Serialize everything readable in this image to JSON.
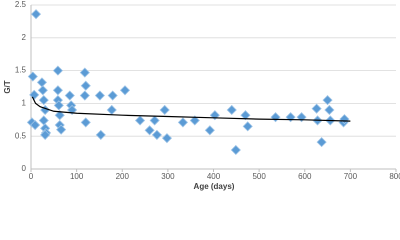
{
  "chart_data": {
    "type": "scatter",
    "x_label": "Age (days)",
    "y_label": "G/T",
    "xlim": [
      0,
      800
    ],
    "xticks": [
      0,
      100,
      200,
      300,
      400,
      500,
      600,
      700,
      800
    ],
    "ylim": [
      0,
      2.5
    ],
    "yticks": [
      0,
      0.5,
      1,
      1.5,
      2,
      2.5
    ],
    "grid": true,
    "series": [
      {
        "marker": "diamond",
        "color": "#5b9bd5",
        "x": [
          11,
          4,
          7,
          2,
          9,
          24,
          26,
          28,
          31,
          28,
          31,
          33,
          31,
          59,
          59,
          59,
          61,
          63,
          63,
          66,
          85,
          88,
          90,
          118,
          120,
          118,
          120,
          151,
          153,
          179,
          177,
          206,
          239,
          260,
          271,
          276,
          293,
          298,
          333,
          359,
          392,
          403,
          440,
          449,
          470,
          475,
          536,
          569,
          593,
          626,
          628,
          637,
          650,
          654,
          656,
          685,
          687
        ],
        "values": [
          2.36,
          1.41,
          1.13,
          0.71,
          0.67,
          1.32,
          1.2,
          1.05,
          0.9,
          0.74,
          0.62,
          0.55,
          0.52,
          1.5,
          1.2,
          1.05,
          0.97,
          0.82,
          0.67,
          0.6,
          1.12,
          0.97,
          0.9,
          1.47,
          1.27,
          1.12,
          0.71,
          1.12,
          0.52,
          1.12,
          0.9,
          1.2,
          0.74,
          0.59,
          0.74,
          0.52,
          0.9,
          0.47,
          0.71,
          0.74,
          0.59,
          0.82,
          0.9,
          0.29,
          0.82,
          0.65,
          0.79,
          0.79,
          0.79,
          0.92,
          0.74,
          0.41,
          1.05,
          0.9,
          0.74,
          0.71,
          0.76
        ]
      }
    ],
    "trendline": {
      "color": "#000000",
      "x": [
        3,
        10,
        20,
        50,
        100,
        200,
        300,
        400,
        500,
        600,
        700
      ],
      "values": [
        1.1,
        1.0,
        0.95,
        0.88,
        0.85,
        0.82,
        0.8,
        0.78,
        0.76,
        0.75,
        0.73
      ]
    }
  }
}
